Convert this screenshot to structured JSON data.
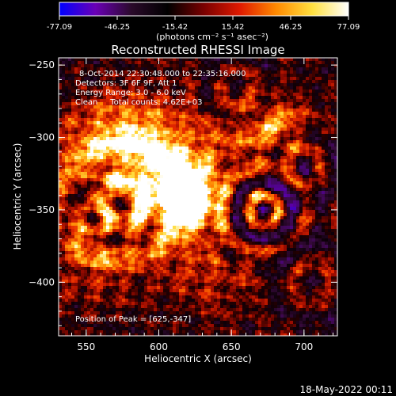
{
  "chart_data": {
    "type": "heatmap",
    "title": "Reconstructed RHESSI Image",
    "xlabel": "Heliocentric X (arcsec)",
    "ylabel": "Heliocentric Y (arcsec)",
    "xlim": [
      531,
      723
    ],
    "ylim": [
      -437,
      -245
    ],
    "x_ticks": [
      "550",
      "600",
      "650",
      "700"
    ],
    "y_ticks": [
      "-250",
      "-300",
      "-350",
      "-400"
    ],
    "grid": false,
    "annotations": [
      "8-Oct-2014 22:30:48.000 to 22:35:16.000",
      "Detectors: 3F 6F 9F, Att 1",
      "Energy Range: 3.0 - 6.0 keV",
      "Clean     Total counts: 4.62E+03"
    ],
    "peak_label": "Position of Peak = [625,-347]",
    "peak_position": [
      625,
      -347
    ],
    "colorbar": {
      "min": -77.09,
      "max": 77.09,
      "ticks": [
        "-77.09",
        "-46.25",
        "-15.42",
        "15.42",
        "46.25",
        "77.09"
      ],
      "label": "(photons cm⁻² s⁻¹ asec⁻²)",
      "colors": [
        "#0000ff",
        "#6a00b5",
        "#2a0a2a",
        "#000000",
        "#7a0000",
        "#e01a00",
        "#ff8a00",
        "#ffe040",
        "#ffffff"
      ]
    },
    "timestamp": "18-May-2022 00:11"
  }
}
